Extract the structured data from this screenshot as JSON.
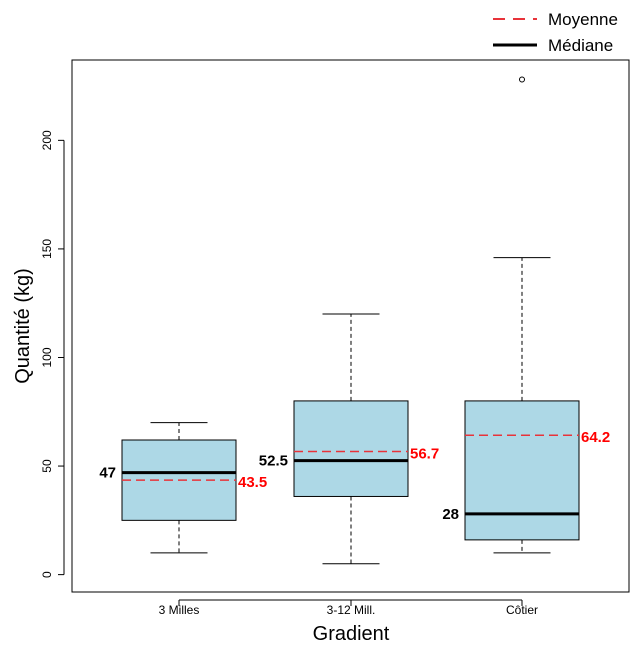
{
  "chart_data": {
    "type": "box",
    "xlabel": "Gradient",
    "ylabel": "Quantité (kg)",
    "categories": [
      "3 Milles",
      "3-12 Mill.",
      "Côtier"
    ],
    "ylim": [
      -8,
      237
    ],
    "yticks": [
      0,
      50,
      100,
      150,
      200
    ],
    "grid": false,
    "legend": {
      "placement": "top-right",
      "entries": [
        {
          "label": "Moyenne",
          "style": "dashed",
          "color": "#e8333a"
        },
        {
          "label": "Médiane",
          "style": "solid",
          "color": "#000000"
        }
      ]
    },
    "boxes": [
      {
        "category": "3 Milles",
        "min": 10,
        "q1": 25,
        "median": 47,
        "q3": 62,
        "max": 70,
        "mean": 43.5,
        "outliers": [],
        "median_label": "47",
        "mean_label": "43.5"
      },
      {
        "category": "3-12 Mill.",
        "min": 5,
        "q1": 36,
        "median": 52.5,
        "q3": 80,
        "max": 120,
        "mean": 56.7,
        "outliers": [],
        "median_label": "52.5",
        "mean_label": "56.7"
      },
      {
        "category": "Côtier",
        "min": 10,
        "q1": 16,
        "median": 28,
        "q3": 80,
        "max": 146,
        "mean": 64.2,
        "outliers": [
          228
        ],
        "median_label": "28",
        "mean_label": "64.2"
      }
    ],
    "colors": {
      "box_fill": "#add8e6",
      "mean_line": "#e8333a",
      "mean_text": "#ff0000",
      "median_line": "#000000"
    }
  }
}
